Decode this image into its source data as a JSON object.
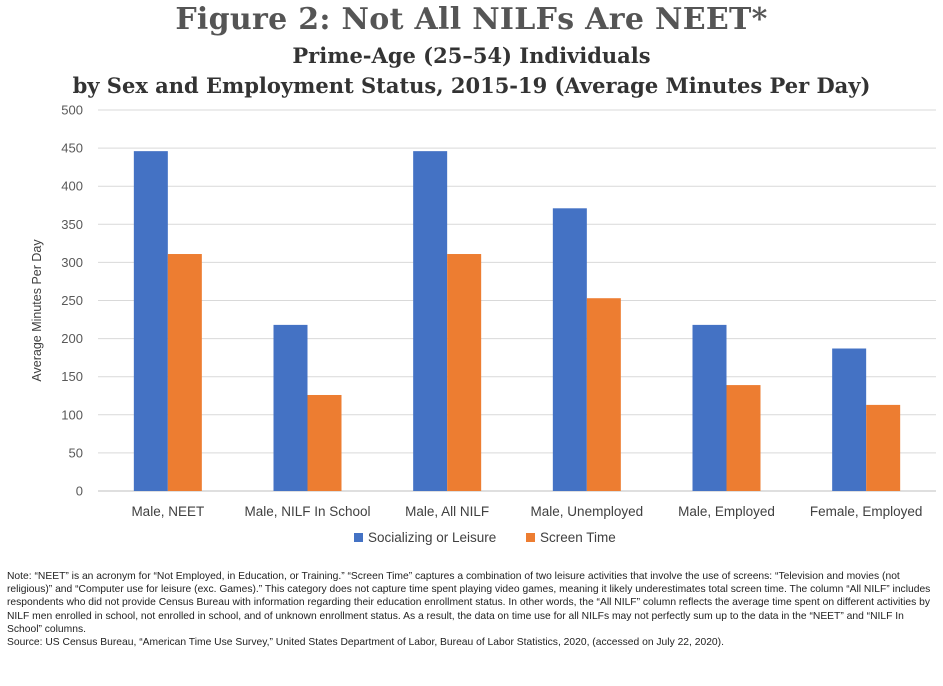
{
  "title": "Figure 2: Not All NILFs Are NEET*",
  "subtitle_line1": "Prime-Age (25–54) Individuals",
  "subtitle_line2": "by Sex and Employment Status, 2015-19 (Average Minutes Per Day)",
  "note": "Note: “NEET” is an acronym for “Not Employed, in Education, or Training.” “Screen Time” captures a combination of two leisure activities that involve the use of screens: “Television and movies (not religious)” and “Computer use for leisure (exc. Games).” This category does not capture time spent playing video games, meaning it likely underestimates total screen time. The column “All NILF” includes respondents who did not provide Census Bureau with information regarding their education enrollment status. In other words, the “All NILF” column reflects the average time spent on different activities by NILF men enrolled in school, not enrolled in school, and of unknown enrollment status. As a result, the data on time use for all NILFs may not perfectly sum up to the data in the “NEET” and “NILF In School” columns.",
  "source": "Source: US Census Bureau, “American Time Use Survey,” United States Department of Labor, Bureau of Labor Statistics, 2020, (accessed on July 22, 2020).",
  "chart_data": {
    "type": "bar",
    "categories": [
      "Male, NEET",
      "Male, NILF In School",
      "Male, All NILF",
      "Male, Unemployed",
      "Male, Employed",
      "Female, Employed"
    ],
    "series": [
      {
        "name": "Socializing or Leisure",
        "color": "#4472C4",
        "values": [
          446,
          218,
          446,
          371,
          218,
          187
        ]
      },
      {
        "name": "Screen Time",
        "color": "#ED7D31",
        "values": [
          311,
          126,
          311,
          253,
          139,
          113
        ]
      }
    ],
    "ylabel": "Average Minutes Per Day",
    "xlabel": "",
    "ylim": [
      0,
      500
    ],
    "yticks": [
      0,
      50,
      100,
      150,
      200,
      250,
      300,
      350,
      400,
      450,
      500
    ],
    "grid": true,
    "legend": "bottom"
  }
}
